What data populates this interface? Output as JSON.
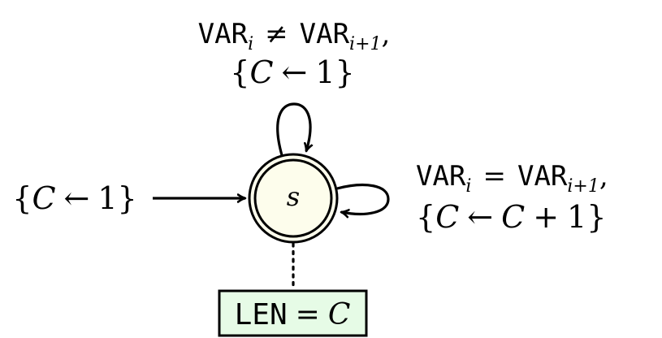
{
  "diagram": {
    "type": "automaton",
    "state": {
      "label": "s",
      "fill": "#fdfdec",
      "accepting": true
    },
    "initial_transition": {
      "assign_var": "C",
      "assign_arrow": "←",
      "assign_value": "1"
    },
    "loop_top": {
      "var": "VAR",
      "sub_left": "i",
      "relation": "≠",
      "sub_right": "i+1",
      "comma": ",",
      "assign_var": "C",
      "assign_arrow": "←",
      "assign_value": "1"
    },
    "loop_right": {
      "var": "VAR",
      "sub_left": "i",
      "relation": "=",
      "sub_right": "i+1",
      "comma": ",",
      "assign_var": "C",
      "assign_arrow": "←",
      "assign_expr_var": "C",
      "assign_expr_op": "+",
      "assign_expr_value": "1"
    },
    "output_box": {
      "name": "LEN",
      "relation": "=",
      "var": "C",
      "fill": "#e6fbe6"
    },
    "braces": {
      "open": "{",
      "close": "}"
    }
  }
}
